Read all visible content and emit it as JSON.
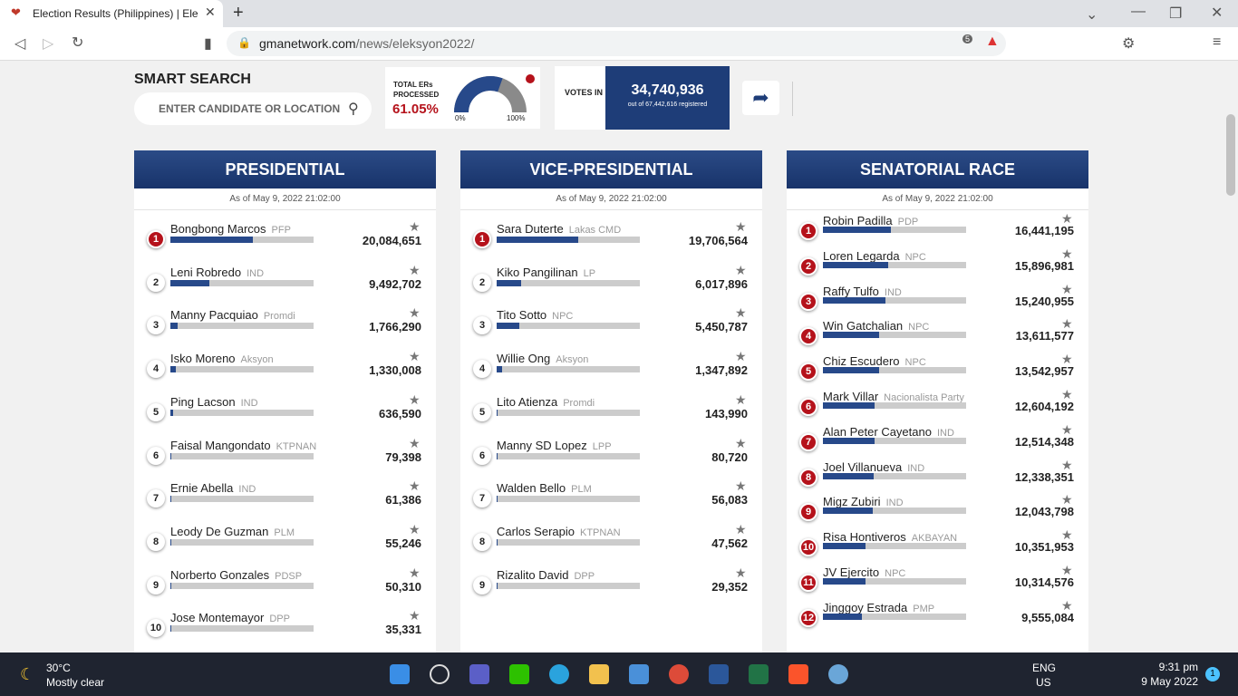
{
  "browser": {
    "tab_title": "Election Results (Philippines) | Ele",
    "url_host": "gmanetwork.com",
    "url_path": "/news/eleksyon2022/",
    "shield_count": "5"
  },
  "search": {
    "title": "SMART SEARCH",
    "placeholder": "ENTER CANDIDATE OR LOCATION"
  },
  "ers": {
    "label": "TOTAL ERs PROCESSED",
    "percent": 61.05,
    "percent_label": "61.05%",
    "min_label": "0%",
    "max_label": "100%"
  },
  "votes_in": {
    "label": "VOTES IN",
    "value": 34740936,
    "value_label": "34,740,936",
    "registered": "out of 67,442,616 registered"
  },
  "races": [
    {
      "title": "PRESIDENTIAL",
      "as_of": "As of May 9, 2022 21:02:00",
      "candidates": [
        {
          "rank": "1",
          "name": "Bongbong Marcos",
          "party": "PFP",
          "votes": 20084651,
          "votes_label": "20,084,651"
        },
        {
          "rank": "2",
          "name": "Leni Robredo",
          "party": "IND",
          "votes": 9492702,
          "votes_label": "9,492,702"
        },
        {
          "rank": "3",
          "name": "Manny Pacquiao",
          "party": "Promdi",
          "votes": 1766290,
          "votes_label": "1,766,290"
        },
        {
          "rank": "4",
          "name": "Isko Moreno",
          "party": "Aksyon",
          "votes": 1330008,
          "votes_label": "1,330,008"
        },
        {
          "rank": "5",
          "name": "Ping Lacson",
          "party": "IND",
          "votes": 636590,
          "votes_label": "636,590"
        },
        {
          "rank": "6",
          "name": "Faisal Mangondato",
          "party": "KTPNAN",
          "votes": 79398,
          "votes_label": "79,398"
        },
        {
          "rank": "7",
          "name": "Ernie Abella",
          "party": "IND",
          "votes": 61386,
          "votes_label": "61,386"
        },
        {
          "rank": "8",
          "name": "Leody De Guzman",
          "party": "PLM",
          "votes": 55246,
          "votes_label": "55,246"
        },
        {
          "rank": "9",
          "name": "Norberto Gonzales",
          "party": "PDSP",
          "votes": 50310,
          "votes_label": "50,310"
        },
        {
          "rank": "10",
          "name": "Jose Montemayor",
          "party": "DPP",
          "votes": 35331,
          "votes_label": "35,331"
        }
      ]
    },
    {
      "title": "VICE-PRESIDENTIAL",
      "as_of": "As of May 9, 2022 21:02:00",
      "candidates": [
        {
          "rank": "1",
          "name": "Sara Duterte",
          "party": "Lakas CMD",
          "votes": 19706564,
          "votes_label": "19,706,564"
        },
        {
          "rank": "2",
          "name": "Kiko Pangilinan",
          "party": "LP",
          "votes": 6017896,
          "votes_label": "6,017,896"
        },
        {
          "rank": "3",
          "name": "Tito Sotto",
          "party": "NPC",
          "votes": 5450787,
          "votes_label": "5,450,787"
        },
        {
          "rank": "4",
          "name": "Willie Ong",
          "party": "Aksyon",
          "votes": 1347892,
          "votes_label": "1,347,892"
        },
        {
          "rank": "5",
          "name": "Lito Atienza",
          "party": "Promdi",
          "votes": 143990,
          "votes_label": "143,990"
        },
        {
          "rank": "6",
          "name": "Manny SD Lopez",
          "party": "LPP",
          "votes": 80720,
          "votes_label": "80,720"
        },
        {
          "rank": "7",
          "name": "Walden Bello",
          "party": "PLM",
          "votes": 56083,
          "votes_label": "56,083"
        },
        {
          "rank": "8",
          "name": "Carlos Serapio",
          "party": "KTPNAN",
          "votes": 47562,
          "votes_label": "47,562"
        },
        {
          "rank": "9",
          "name": "Rizalito David",
          "party": "DPP",
          "votes": 29352,
          "votes_label": "29,352"
        }
      ]
    },
    {
      "title": "SENATORIAL RACE",
      "as_of": "As of May 9, 2022 21:02:00",
      "candidates": [
        {
          "rank": "1",
          "name": "Robin Padilla",
          "party": "PDP",
          "votes": 16441195,
          "votes_label": "16,441,195"
        },
        {
          "rank": "2",
          "name": "Loren Legarda",
          "party": "NPC",
          "votes": 15896981,
          "votes_label": "15,896,981"
        },
        {
          "rank": "3",
          "name": "Raffy Tulfo",
          "party": "IND",
          "votes": 15240955,
          "votes_label": "15,240,955"
        },
        {
          "rank": "4",
          "name": "Win Gatchalian",
          "party": "NPC",
          "votes": 13611577,
          "votes_label": "13,611,577"
        },
        {
          "rank": "5",
          "name": "Chiz Escudero",
          "party": "NPC",
          "votes": 13542957,
          "votes_label": "13,542,957"
        },
        {
          "rank": "6",
          "name": "Mark Villar",
          "party": "Nacionalista Party",
          "votes": 12604192,
          "votes_label": "12,604,192"
        },
        {
          "rank": "7",
          "name": "Alan Peter Cayetano",
          "party": "IND",
          "votes": 12514348,
          "votes_label": "12,514,348"
        },
        {
          "rank": "8",
          "name": "Joel Villanueva",
          "party": "IND",
          "votes": 12338351,
          "votes_label": "12,338,351"
        },
        {
          "rank": "9",
          "name": "Migz Zubiri",
          "party": "IND",
          "votes": 12043798,
          "votes_label": "12,043,798"
        },
        {
          "rank": "10",
          "name": "Risa Hontiveros",
          "party": "AKBAYAN",
          "votes": 10351953,
          "votes_label": "10,351,953"
        },
        {
          "rank": "11",
          "name": "JV Ejercito",
          "party": "NPC",
          "votes": 10314576,
          "votes_label": "10,314,576"
        },
        {
          "rank": "12",
          "name": "Jinggoy Estrada",
          "party": "PMP",
          "votes": 9555084,
          "votes_label": "9,555,084"
        }
      ]
    }
  ],
  "taskbar": {
    "temp": "30°C",
    "weather": "Mostly clear",
    "lang": "ENG",
    "region": "US",
    "time": "9:31 pm",
    "date": "9 May 2022",
    "notifications": "1"
  }
}
